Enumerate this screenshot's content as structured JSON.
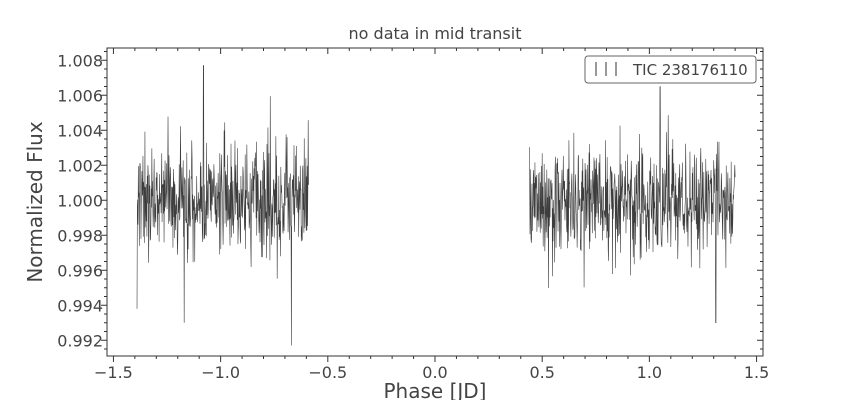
{
  "chart_data": {
    "type": "line",
    "title": "no data in mid transit",
    "xlabel": "Phase [JD]",
    "ylabel": "Normalized Flux",
    "xlim": [
      -1.53,
      1.53
    ],
    "ylim": [
      0.9911,
      1.0087
    ],
    "xticks": [
      -1.5,
      -1.0,
      -0.5,
      0.0,
      0.5,
      1.0,
      1.5
    ],
    "xtick_labels": [
      "−1.5",
      "−1.0",
      "−0.5",
      "0.0",
      "0.5",
      "1.0",
      "1.5"
    ],
    "yticks": [
      0.992,
      0.994,
      0.996,
      0.998,
      1.0,
      1.002,
      1.004,
      1.006,
      1.008
    ],
    "ytick_labels": [
      "0.992",
      "0.994",
      "0.996",
      "0.998",
      "1.000",
      "1.002",
      "1.004",
      "1.006",
      "1.008"
    ],
    "grid": false,
    "legend_position": "top-right",
    "series": [
      {
        "name": "TIC 238176110",
        "color": "#333333",
        "segments": [
          {
            "x_start": -1.39,
            "x_end": -0.59,
            "center": 1.0,
            "spread": 0.0019
          },
          {
            "x_start": 0.44,
            "x_end": 1.4,
            "center": 1.0,
            "spread": 0.0019
          }
        ],
        "extremes": [
          {
            "x": -1.08,
            "y": 1.0077
          },
          {
            "x": -0.67,
            "y": 0.9917
          },
          {
            "x": -1.17,
            "y": 0.993
          },
          {
            "x": 1.05,
            "y": 1.0065
          },
          {
            "x": 1.31,
            "y": 0.993
          },
          {
            "x": -1.39,
            "y": 0.9938
          }
        ]
      }
    ]
  }
}
